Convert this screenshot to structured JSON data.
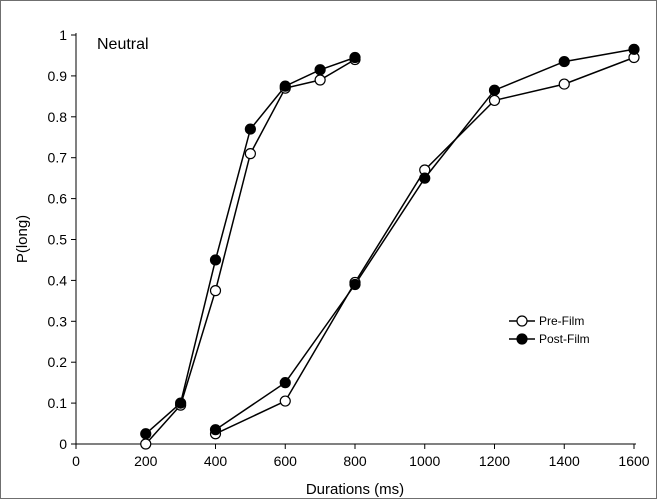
{
  "chart_data": {
    "type": "line",
    "title": "Neutral",
    "xlabel": "Durations (ms)",
    "ylabel": "P(long)",
    "xlim": [
      0,
      1600
    ],
    "ylim": [
      0,
      1
    ],
    "x_ticks": [
      "0",
      "200",
      "400",
      "600",
      "800",
      "1000",
      "1200",
      "1400",
      "1600"
    ],
    "y_ticks": [
      "0",
      "0.1",
      "0.2",
      "0.3",
      "0.4",
      "0.5",
      "0.6",
      "0.7",
      "0.8",
      "0.9",
      "1"
    ],
    "grid": false,
    "legend_position": "right",
    "series": [
      {
        "name": "Pre-Film",
        "marker": "open-circle",
        "segments": [
          {
            "x": [
              200,
              300,
              400,
              500,
              600,
              700,
              800
            ],
            "y": [
              0.0,
              0.095,
              0.375,
              0.71,
              0.87,
              0.89,
              0.94
            ]
          },
          {
            "x": [
              400,
              600,
              800,
              1000,
              1200,
              1400,
              1600
            ],
            "y": [
              0.025,
              0.105,
              0.395,
              0.67,
              0.84,
              0.88,
              0.945
            ]
          }
        ]
      },
      {
        "name": "Post-Film",
        "marker": "filled-circle",
        "segments": [
          {
            "x": [
              200,
              300,
              400,
              500,
              600,
              700,
              800
            ],
            "y": [
              0.025,
              0.1,
              0.45,
              0.77,
              0.875,
              0.915,
              0.945
            ]
          },
          {
            "x": [
              400,
              600,
              800,
              1000,
              1200,
              1400,
              1600
            ],
            "y": [
              0.035,
              0.15,
              0.39,
              0.65,
              0.865,
              0.935,
              0.965
            ]
          }
        ]
      }
    ]
  }
}
